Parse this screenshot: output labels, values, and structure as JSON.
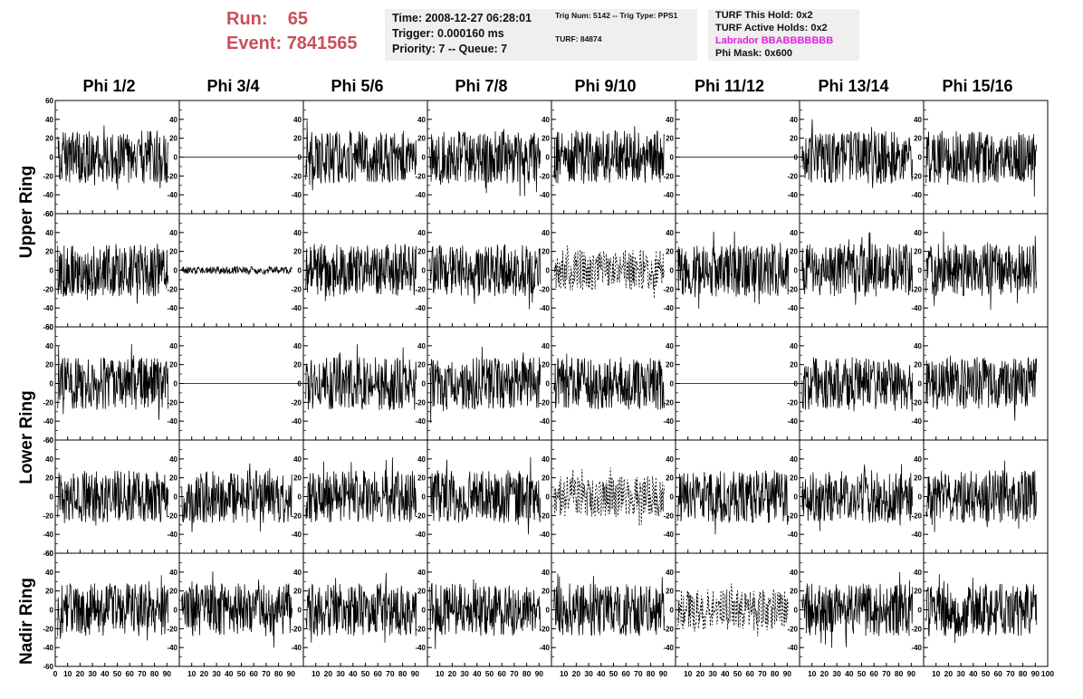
{
  "header": {
    "run_label": "Run:",
    "run_value": "65",
    "event_label": "Event:",
    "event_value": "7841565"
  },
  "info": {
    "time": "Time: 2008-12-27 06:28:01",
    "trigger": "Trigger: 0.000160 ms",
    "priority": "Priority: 7 -- Queue: 7",
    "trig_num": "Trig Num: 5142 -- Trig Type: PPS1",
    "turf": "TURF: 84874",
    "turf_this_hold": "TURF This Hold: 0x2",
    "turf_active_holds": "TURF Active Holds: 0x2",
    "labrador": "Labrador BBABBBBBBB",
    "phi_mask": "Phi Mask: 0x600"
  },
  "colors": {
    "run_text": "#c8505a",
    "labrador_text": "#e020e0",
    "info_bg": "#efefef"
  },
  "columns": [
    "Phi 1/2",
    "Phi 3/4",
    "Phi 5/6",
    "Phi 7/8",
    "Phi 9/10",
    "Phi 11/12",
    "Phi 13/14",
    "Phi 15/16"
  ],
  "ring_labels": [
    "Upper Ring",
    "Lower Ring",
    "Nadir Ring"
  ],
  "chart_data": {
    "type": "line",
    "xlim": [
      0,
      100
    ],
    "ylim": [
      -60,
      60
    ],
    "x_ticks": [
      0,
      10,
      20,
      30,
      40,
      50,
      60,
      70,
      80,
      90,
      100
    ],
    "y_ticks": [
      -60,
      -40,
      -20,
      0,
      20,
      40,
      60
    ],
    "rows": 5,
    "cols": 8,
    "panels": [
      [
        "noisy",
        "flat",
        "noisy",
        "noisy",
        "noisy",
        "flat",
        "noisy",
        "noisy"
      ],
      [
        "noisy",
        "small",
        "noisy",
        "noisy",
        "dashed",
        "noisy",
        "noisy",
        "noisy"
      ],
      [
        "noisy",
        "flat",
        "noisy",
        "noisy",
        "noisy",
        "flat",
        "noisy",
        "noisy"
      ],
      [
        "noisy",
        "noisy",
        "noisy",
        "noisy",
        "dashed",
        "noisy",
        "noisy",
        "noisy"
      ],
      [
        "noisy",
        "noisy",
        "noisy",
        "noisy",
        "noisy",
        "dashed",
        "noisy",
        "noisy"
      ]
    ],
    "amplitude": {
      "noisy": 28,
      "small": 4,
      "dashed": 22,
      "flat": 0
    }
  }
}
